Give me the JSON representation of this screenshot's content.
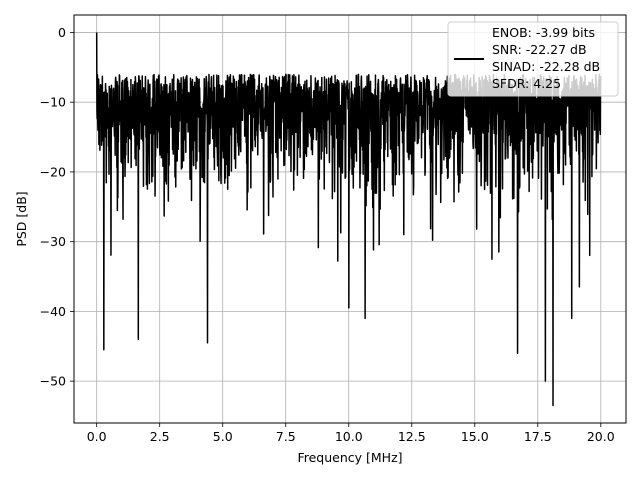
{
  "chart_data": {
    "type": "line",
    "title": "",
    "xlabel": "Frequency [MHz]",
    "ylabel": "PSD [dB]",
    "xlim": [
      -0.9,
      21.0
    ],
    "ylim": [
      -56,
      2.5
    ],
    "xticks": [
      0.0,
      2.5,
      5.0,
      7.5,
      10.0,
      12.5,
      15.0,
      17.5,
      20.0
    ],
    "xtick_labels": [
      "0.0",
      "2.5",
      "5.0",
      "7.5",
      "10.0",
      "12.5",
      "15.0",
      "17.5",
      "20.0"
    ],
    "yticks": [
      0,
      -10,
      -20,
      -30,
      -40,
      -50
    ],
    "ytick_labels": [
      "0",
      "−10",
      "−20",
      "−30",
      "−40",
      "−50"
    ],
    "grid": true,
    "legend_position": "top-right",
    "legend": {
      "lines": [
        "ENOB: -3.99 bits",
        "SNR: -22.27 dB",
        "SINAD: -22.28 dB",
        "SFDR: 4.25"
      ]
    },
    "series": [
      {
        "color": "#000000",
        "x_range": [
          0.0,
          20.0
        ],
        "points": 2048,
        "noise_mean_db": -18,
        "envelope_max_db": -7,
        "envelope_min_db": -38,
        "peaks": [
          {
            "x": 0.0,
            "y": 0.0
          },
          {
            "x": 0.06,
            "y": -8.0
          },
          {
            "x": 0.28,
            "y": -45.5
          },
          {
            "x": 1.65,
            "y": -44.0
          },
          {
            "x": 4.4,
            "y": -44.5
          },
          {
            "x": 7.5,
            "y": -6.0
          },
          {
            "x": 10.65,
            "y": -41.0
          },
          {
            "x": 16.7,
            "y": -46.0
          },
          {
            "x": 17.8,
            "y": -50.0
          },
          {
            "x": 18.1,
            "y": -53.5
          },
          {
            "x": 18.85,
            "y": -41.0
          }
        ]
      }
    ]
  },
  "colors": {
    "line": "#000000",
    "grid": "#b0b0b0",
    "axes": "#000000",
    "background": "#ffffff"
  }
}
